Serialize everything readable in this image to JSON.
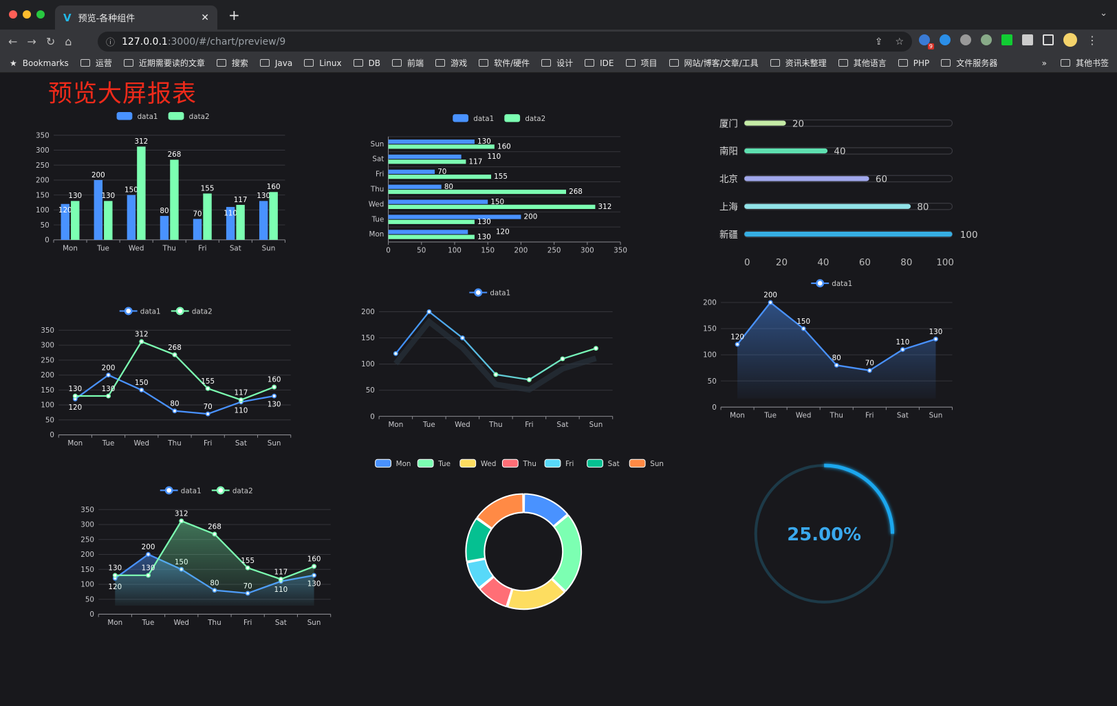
{
  "browser": {
    "tab_title": "预览-各种组件",
    "url_host": "127.0.0.1",
    "url_rest": ":3000/#/chart/preview/9",
    "extension_badge": "9",
    "bookmarks_label": "Bookmarks",
    "bookmarks": [
      "运营",
      "近期需要读的文章",
      "搜索",
      "Java",
      "Linux",
      "DB",
      "前端",
      "游戏",
      "软件/硬件",
      "设计",
      "IDE",
      "项目",
      "网站/博客/文章/工具",
      "资讯未整理",
      "其他语言",
      "PHP",
      "文件服务器"
    ],
    "overflow": "»",
    "other_bookmarks": "其他书签"
  },
  "page_title": "预览大屏报表",
  "colors": {
    "data1": "#4992ff",
    "data2": "#7cffb2",
    "title": "#ee2a1a"
  },
  "chart_data": [
    {
      "type": "bar",
      "categories": [
        "Mon",
        "Tue",
        "Wed",
        "Thu",
        "Fri",
        "Sat",
        "Sun"
      ],
      "series": [
        {
          "name": "data1",
          "values": [
            120,
            200,
            150,
            80,
            70,
            110,
            130
          ]
        },
        {
          "name": "data2",
          "values": [
            130,
            130,
            312,
            268,
            155,
            117,
            160
          ]
        }
      ],
      "ylim": [
        0,
        350
      ],
      "ytick_interval": 50,
      "legend": "top"
    },
    {
      "type": "bar",
      "orientation": "horizontal",
      "categories": [
        "Mon",
        "Tue",
        "Wed",
        "Thu",
        "Fri",
        "Sat",
        "Sun"
      ],
      "series": [
        {
          "name": "data1",
          "values": [
            120,
            200,
            150,
            80,
            70,
            110,
            130
          ]
        },
        {
          "name": "data2",
          "values": [
            130,
            130,
            312,
            268,
            155,
            117,
            160
          ]
        }
      ],
      "xlim": [
        0,
        350
      ],
      "xtick_interval": 50,
      "legend": "top"
    },
    {
      "type": "bar",
      "orientation": "horizontal",
      "style": "progress",
      "categories": [
        "厦门",
        "南阳",
        "北京",
        "上海",
        "新疆"
      ],
      "values": [
        20,
        40,
        60,
        80,
        100
      ],
      "colors": [
        "#c5eba6",
        "#5ee0b0",
        "#a1a8ec",
        "#92e3e8",
        "#36aee3"
      ],
      "xlim": [
        0,
        100
      ],
      "xticks": [
        0,
        20,
        40,
        60,
        80,
        100
      ]
    },
    {
      "type": "line",
      "categories": [
        "Mon",
        "Tue",
        "Wed",
        "Thu",
        "Fri",
        "Sat",
        "Sun"
      ],
      "series": [
        {
          "name": "data1",
          "values": [
            120,
            200,
            150,
            80,
            70,
            110,
            130
          ]
        },
        {
          "name": "data2",
          "values": [
            130,
            130,
            312,
            268,
            155,
            117,
            160
          ]
        }
      ],
      "ylim": [
        0,
        350
      ],
      "ytick_interval": 50,
      "legend": "top"
    },
    {
      "type": "line",
      "categories": [
        "Mon",
        "Tue",
        "Wed",
        "Thu",
        "Fri",
        "Sat",
        "Sun"
      ],
      "series": [
        {
          "name": "data1",
          "values": [
            120,
            200,
            150,
            80,
            70,
            110,
            130
          ]
        }
      ],
      "ylim": [
        0,
        200
      ],
      "ytick_interval": 50,
      "legend": "top"
    },
    {
      "type": "area",
      "categories": [
        "Mon",
        "Tue",
        "Wed",
        "Thu",
        "Fri",
        "Sat",
        "Sun"
      ],
      "series": [
        {
          "name": "data1",
          "values": [
            120,
            200,
            150,
            80,
            70,
            110,
            130
          ]
        }
      ],
      "ylim": [
        0,
        200
      ],
      "ytick_interval": 50,
      "legend": "top"
    },
    {
      "type": "pie",
      "style": "donut",
      "categories": [
        "Mon",
        "Tue",
        "Wed",
        "Thu",
        "Fri",
        "Sat",
        "Sun"
      ],
      "values": [
        120,
        200,
        150,
        80,
        70,
        110,
        130
      ],
      "colors": [
        "#4992ff",
        "#7cffb2",
        "#fddd60",
        "#ff6e76",
        "#58d9f9",
        "#05c091",
        "#ff8a45"
      ],
      "legend": "top"
    },
    {
      "type": "area",
      "categories": [
        "Mon",
        "Tue",
        "Wed",
        "Thu",
        "Fri",
        "Sat",
        "Sun"
      ],
      "series": [
        {
          "name": "data1",
          "values": [
            120,
            200,
            150,
            80,
            70,
            110,
            130
          ]
        },
        {
          "name": "data2",
          "values": [
            130,
            130,
            312,
            268,
            155,
            117,
            160
          ]
        }
      ],
      "ylim": [
        0,
        350
      ],
      "ytick_interval": 50,
      "legend": "top"
    },
    {
      "type": "gauge",
      "value": 25,
      "max": 100,
      "label": "25.00%",
      "color": "#1aa7ee"
    }
  ]
}
